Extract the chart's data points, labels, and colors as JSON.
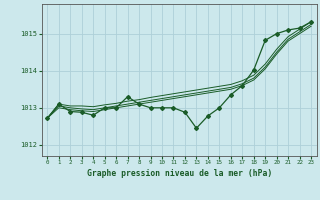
{
  "xlabel": "Graphe pression niveau de la mer (hPa)",
  "bg_color": "#cce8ec",
  "grid_color": "#aed0d8",
  "line_color": "#1a5c28",
  "xlim": [
    -0.5,
    23.5
  ],
  "ylim": [
    1011.7,
    1015.8
  ],
  "yticks": [
    1012,
    1013,
    1014,
    1015
  ],
  "xticks": [
    0,
    1,
    2,
    3,
    4,
    5,
    6,
    7,
    8,
    9,
    10,
    11,
    12,
    13,
    14,
    15,
    16,
    17,
    18,
    19,
    20,
    21,
    22,
    23
  ],
  "series_main": [
    1012.72,
    1013.1,
    1012.9,
    1012.88,
    1012.8,
    1013.0,
    1013.0,
    1013.3,
    1013.1,
    1013.0,
    1013.0,
    1013.0,
    1012.88,
    1012.45,
    1012.78,
    1013.0,
    1013.35,
    1013.6,
    1014.02,
    1014.82,
    1015.0,
    1015.1,
    1015.15,
    1015.32
  ],
  "series_line1": [
    1012.72,
    1013.1,
    1013.05,
    1013.05,
    1013.03,
    1013.08,
    1013.12,
    1013.18,
    1013.22,
    1013.28,
    1013.33,
    1013.38,
    1013.43,
    1013.48,
    1013.53,
    1013.58,
    1013.63,
    1013.73,
    1013.88,
    1014.18,
    1014.58,
    1014.92,
    1015.12,
    1015.32
  ],
  "series_line2": [
    1012.72,
    1013.05,
    1013.0,
    1012.97,
    1012.95,
    1013.0,
    1013.05,
    1013.1,
    1013.15,
    1013.2,
    1013.25,
    1013.3,
    1013.35,
    1013.4,
    1013.45,
    1013.5,
    1013.55,
    1013.65,
    1013.8,
    1014.1,
    1014.5,
    1014.85,
    1015.05,
    1015.25
  ],
  "series_line3": [
    1012.72,
    1013.0,
    1012.95,
    1012.92,
    1012.9,
    1012.95,
    1013.0,
    1013.05,
    1013.1,
    1013.15,
    1013.2,
    1013.25,
    1013.3,
    1013.35,
    1013.4,
    1013.45,
    1013.5,
    1013.6,
    1013.75,
    1014.05,
    1014.45,
    1014.8,
    1015.0,
    1015.2
  ]
}
